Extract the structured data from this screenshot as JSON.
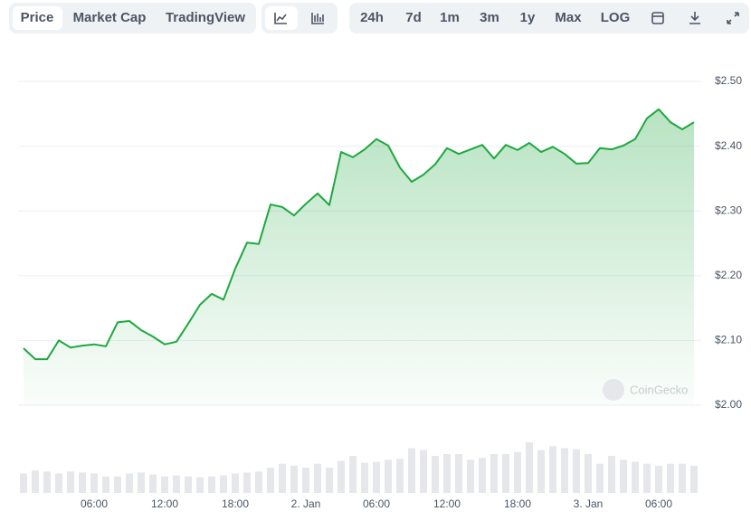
{
  "toolbar": {
    "tabs": [
      "Price",
      "Market Cap",
      "TradingView"
    ],
    "ranges": [
      "24h",
      "7d",
      "1m",
      "3m",
      "1y",
      "Max",
      "LOG"
    ]
  },
  "chart_data": {
    "type": "line",
    "watermark": "CoinGecko",
    "color": "#1fa83f",
    "grid": true,
    "categories": [
      null,
      null,
      null,
      null,
      null,
      null,
      "06:00",
      null,
      null,
      null,
      null,
      null,
      "12:00",
      null,
      null,
      null,
      null,
      null,
      "18:00",
      null,
      null,
      null,
      null,
      null,
      "2. Jan",
      null,
      null,
      null,
      null,
      null,
      "06:00",
      null,
      null,
      null,
      null,
      null,
      "12:00",
      null,
      null,
      null,
      null,
      null,
      "18:00",
      null,
      null,
      null,
      null,
      null,
      "3. Jan",
      null,
      null,
      null,
      null,
      null,
      "06:00",
      null,
      null,
      null
    ],
    "values": [
      2.088,
      2.071,
      2.071,
      2.1,
      2.089,
      2.092,
      2.094,
      2.091,
      2.128,
      2.13,
      2.116,
      2.106,
      2.094,
      2.098,
      2.126,
      2.155,
      2.172,
      2.163,
      2.211,
      2.251,
      2.249,
      2.31,
      2.306,
      2.293,
      2.311,
      2.327,
      2.309,
      2.391,
      2.383,
      2.395,
      2.411,
      2.401,
      2.367,
      2.345,
      2.356,
      2.372,
      2.397,
      2.388,
      2.395,
      2.402,
      2.381,
      2.402,
      2.394,
      2.405,
      2.391,
      2.399,
      2.388,
      2.373,
      2.374,
      2.397,
      2.395,
      2.401,
      2.411,
      2.443,
      2.457,
      2.437,
      2.426,
      2.437
    ],
    "volumes": [
      20,
      23,
      22,
      20,
      22,
      21,
      20,
      17,
      17,
      20,
      21,
      19,
      17,
      18,
      17,
      16,
      17,
      18,
      20,
      21,
      22,
      26,
      30,
      28,
      26,
      30,
      26,
      33,
      38,
      31,
      32,
      34,
      35,
      46,
      44,
      38,
      40,
      40,
      34,
      36,
      40,
      40,
      42,
      52,
      44,
      48,
      46,
      45,
      40,
      30,
      38,
      34,
      32,
      30,
      28,
      30,
      30,
      28
    ],
    "ylim": [
      2.0,
      2.5
    ],
    "yticks": [
      {
        "value": 2.0,
        "label": "$2.00"
      },
      {
        "value": 2.1,
        "label": "$2.10"
      },
      {
        "value": 2.2,
        "label": "$2.20"
      },
      {
        "value": 2.3,
        "label": "$2.30"
      },
      {
        "value": 2.4,
        "label": "$2.40"
      },
      {
        "value": 2.5,
        "label": "$2.50"
      }
    ]
  }
}
